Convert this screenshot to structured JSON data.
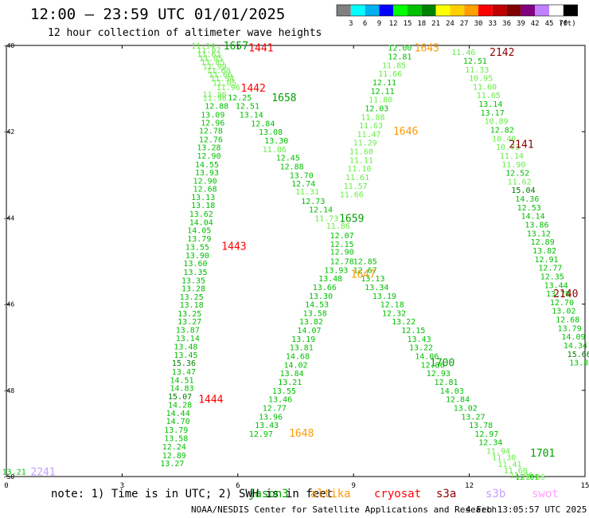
{
  "title": "12:00 – 23:59 UTC 01/01/2025",
  "subtitle": "12 hour collection of altimeter wave heights",
  "colorbar": {
    "unit": "(ft)",
    "labels": [
      "3",
      "6",
      "9",
      "12",
      "15",
      "18",
      "21",
      "24",
      "27",
      "30",
      "33",
      "36",
      "39",
      "42",
      "45",
      "70"
    ],
    "colors": [
      "#808080",
      "#00ffff",
      "#00b0f0",
      "#0000ff",
      "#00ff00",
      "#00c000",
      "#008000",
      "#ffff00",
      "#ffd000",
      "#ffa000",
      "#ff0000",
      "#c00000",
      "#800000",
      "#800080",
      "#c080ff",
      "#ffffff",
      "#000000"
    ]
  },
  "footer": {
    "note": "note:  1) Time is in UTC;  2) SWH is in feet",
    "credit": "NOAA/NESDIS Center for Satellite Applications and Research",
    "timestamp": "4 Feb 13:05:57 UTC 2025"
  },
  "legend": [
    {
      "name": "jason3",
      "color": "#00a000"
    },
    {
      "name": "altika",
      "color": "#ff9900"
    },
    {
      "name": "cryosat",
      "color": "#ff0000"
    },
    {
      "name": "s3a",
      "color": "#900000"
    },
    {
      "name": "s3b",
      "color": "#c8a0ff"
    },
    {
      "name": "swot",
      "color": "#ffa0ff"
    }
  ],
  "chart_data": {
    "type": "scatter",
    "xlim": [
      0,
      15
    ],
    "ylim": [
      -50,
      -40
    ],
    "xticks": [
      "0",
      "3",
      "6",
      "9",
      "12",
      "15"
    ],
    "yticks": [
      {
        "value": -40,
        "label": "-40"
      },
      {
        "value": -42,
        "label": "-42"
      },
      {
        "value": -44,
        "label": "-44"
      },
      {
        "value": -46,
        "label": "-46"
      },
      {
        "value": -48,
        "label": "-48"
      },
      {
        "value": -50,
        "label": "-50"
      }
    ],
    "color_scale": {
      "bounds": [
        3,
        6,
        9,
        12,
        15,
        18,
        21
      ],
      "colors": [
        "#00ffff",
        "#00b0f0",
        "#0000ff",
        "#66ee44",
        "#00c000",
        "#008000",
        "#ffff00"
      ]
    },
    "tracks": [
      {
        "satellite": "swot",
        "pass_labels": [
          {
            "text": "2241",
            "x": 0.95,
            "y": -49.88,
            "color": "#c8a0ff"
          }
        ],
        "points": [
          [
            0.2,
            -49.88,
            13.21
          ]
        ]
      },
      {
        "satellite": "cryosat",
        "pass_labels": [
          {
            "text": "1441",
            "x": 6.6,
            "y": -40.05,
            "color": "#ff0000"
          },
          {
            "text": "1442",
            "x": 6.4,
            "y": -40.98,
            "color": "#ff0000"
          },
          {
            "text": "1443",
            "x": 5.9,
            "y": -44.65,
            "color": "#ff0000"
          },
          {
            "text": "1444",
            "x": 5.3,
            "y": -48.2,
            "color": "#ff0000"
          }
        ],
        "points": [
          [
            5.1,
            -40.0,
            11.14
          ],
          [
            5.25,
            -40.1,
            11.07
          ],
          [
            5.25,
            -40.19,
            11.62
          ],
          [
            5.3,
            -40.29,
            11.05
          ],
          [
            5.35,
            -40.38,
            11.85
          ],
          [
            5.4,
            -40.48,
            11.99
          ],
          [
            5.5,
            -40.57,
            11.6
          ],
          [
            5.55,
            -40.67,
            11.66
          ],
          [
            5.6,
            -40.76,
            11.94
          ],
          [
            5.65,
            -40.86,
            11.05
          ],
          [
            5.75,
            -40.96,
            11.96
          ],
          [
            5.4,
            -41.13,
            11.96
          ],
          [
            5.4,
            -41.21,
            11.96
          ],
          [
            5.45,
            -41.4,
            12.88
          ],
          [
            5.35,
            -41.6,
            13.09
          ],
          [
            5.35,
            -41.78,
            12.96
          ],
          [
            5.3,
            -41.97,
            12.78
          ],
          [
            5.3,
            -42.17,
            12.76
          ],
          [
            5.25,
            -42.36,
            13.28
          ],
          [
            5.25,
            -42.55,
            12.9
          ],
          [
            5.2,
            -42.75,
            14.55
          ],
          [
            5.2,
            -42.94,
            13.93
          ],
          [
            5.15,
            -43.13,
            12.9
          ],
          [
            5.15,
            -43.32,
            12.68
          ],
          [
            5.1,
            -43.51,
            13.13
          ],
          [
            5.1,
            -43.7,
            13.18
          ],
          [
            5.05,
            -43.9,
            13.62
          ],
          [
            5.05,
            -44.09,
            14.04
          ],
          [
            5.0,
            -44.28,
            14.05
          ],
          [
            5.0,
            -44.47,
            13.79
          ],
          [
            4.95,
            -44.67,
            13.55
          ],
          [
            4.95,
            -44.86,
            13.9
          ],
          [
            4.9,
            -45.05,
            13.6
          ],
          [
            4.9,
            -45.25,
            13.35
          ],
          [
            4.85,
            -45.44,
            13.35
          ],
          [
            4.85,
            -45.63,
            13.28
          ],
          [
            4.8,
            -45.82,
            13.25
          ],
          [
            4.8,
            -46.01,
            13.18
          ],
          [
            4.75,
            -46.21,
            13.25
          ],
          [
            4.75,
            -46.4,
            13.27
          ],
          [
            4.7,
            -46.59,
            13.87
          ],
          [
            4.7,
            -46.78,
            13.14
          ],
          [
            4.65,
            -46.98,
            13.48
          ],
          [
            4.65,
            -47.17,
            13.45
          ],
          [
            4.6,
            -47.36,
            15.36
          ],
          [
            4.6,
            -47.56,
            13.47
          ],
          [
            4.55,
            -47.75,
            14.51
          ],
          [
            4.55,
            -47.94,
            14.83
          ],
          [
            4.5,
            -48.13,
            15.07
          ],
          [
            4.5,
            -48.33,
            14.28
          ],
          [
            4.45,
            -48.52,
            14.44
          ],
          [
            4.45,
            -48.71,
            14.7
          ],
          [
            4.4,
            -48.91,
            13.79
          ],
          [
            4.4,
            -49.1,
            13.58
          ],
          [
            4.35,
            -49.3,
            12.24
          ],
          [
            4.35,
            -49.5,
            12.89
          ],
          [
            4.3,
            -49.69,
            13.27
          ]
        ]
      },
      {
        "satellite": "jason3",
        "pass_labels": [
          {
            "text": "1657",
            "x": 5.95,
            "y": -40.0,
            "color": "#00a000"
          },
          {
            "text": "1658",
            "x": 7.2,
            "y": -41.2,
            "color": "#00a000"
          },
          {
            "text": "1659",
            "x": 8.95,
            "y": -44.0,
            "color": "#00a000"
          },
          {
            "text": "1700",
            "x": 11.3,
            "y": -47.35,
            "color": "#00a000"
          },
          {
            "text": "1701",
            "x": 13.9,
            "y": -49.45,
            "color": "#00a000"
          }
        ],
        "points": [
          [
            6.05,
            -41.2,
            12.25
          ],
          [
            6.25,
            -41.4,
            12.51
          ],
          [
            6.35,
            -41.6,
            13.14
          ],
          [
            6.65,
            -41.8,
            12.84
          ],
          [
            6.85,
            -42.0,
            13.08
          ],
          [
            7.0,
            -42.2,
            13.3
          ],
          [
            6.95,
            -42.4,
            11.86
          ],
          [
            7.3,
            -42.6,
            12.45
          ],
          [
            7.4,
            -42.8,
            12.88
          ],
          [
            7.65,
            -43.0,
            13.7
          ],
          [
            7.7,
            -43.2,
            12.74
          ],
          [
            7.8,
            -43.38,
            11.31
          ],
          [
            7.95,
            -43.6,
            12.73
          ],
          [
            8.15,
            -43.8,
            12.14
          ],
          [
            8.3,
            -44.0,
            11.73
          ],
          [
            8.6,
            -44.18,
            11.86
          ],
          [
            8.7,
            -44.4,
            12.07
          ],
          [
            8.7,
            -44.6,
            12.15
          ],
          [
            8.7,
            -44.78,
            12.9
          ],
          [
            8.7,
            -45.0,
            12.78
          ],
          [
            8.55,
            -45.2,
            13.93
          ],
          [
            8.4,
            -45.4,
            13.48
          ],
          [
            8.25,
            -45.6,
            13.66
          ],
          [
            8.15,
            -45.8,
            13.3
          ],
          [
            8.05,
            -46.0,
            14.53
          ],
          [
            8.0,
            -46.2,
            13.58
          ],
          [
            7.9,
            -46.4,
            13.82
          ],
          [
            7.85,
            -46.6,
            14.07
          ],
          [
            7.7,
            -46.8,
            13.19
          ],
          [
            7.65,
            -47.0,
            13.81
          ],
          [
            7.55,
            -47.2,
            14.68
          ],
          [
            7.5,
            -47.4,
            14.02
          ],
          [
            7.4,
            -47.6,
            13.84
          ],
          [
            7.35,
            -47.8,
            13.21
          ],
          [
            7.2,
            -48.0,
            13.55
          ],
          [
            7.1,
            -48.2,
            13.46
          ],
          [
            6.95,
            -48.4,
            12.77
          ],
          [
            6.85,
            -48.6,
            13.96
          ],
          [
            6.75,
            -48.8,
            13.43
          ],
          [
            6.6,
            -49.0,
            12.97
          ],
          [
            9.3,
            -45.0,
            12.85
          ],
          [
            9.3,
            -45.2,
            12.67
          ],
          [
            9.5,
            -45.4,
            13.13
          ],
          [
            9.6,
            -45.6,
            13.34
          ],
          [
            9.8,
            -45.8,
            13.19
          ],
          [
            10.0,
            -46.0,
            12.18
          ],
          [
            10.05,
            -46.2,
            12.32
          ],
          [
            10.3,
            -46.4,
            13.22
          ],
          [
            10.55,
            -46.6,
            12.15
          ],
          [
            10.7,
            -46.8,
            13.43
          ],
          [
            10.75,
            -47.0,
            13.22
          ],
          [
            10.9,
            -47.2,
            14.06
          ],
          [
            11.05,
            -47.4,
            12.86
          ],
          [
            11.2,
            -47.6,
            12.93
          ],
          [
            11.4,
            -47.8,
            12.81
          ],
          [
            11.55,
            -48.0,
            14.03
          ],
          [
            11.7,
            -48.2,
            12.84
          ],
          [
            11.9,
            -48.4,
            13.02
          ],
          [
            12.1,
            -48.6,
            13.27
          ],
          [
            12.3,
            -48.8,
            13.78
          ],
          [
            12.45,
            -49.0,
            12.97
          ],
          [
            12.55,
            -49.2,
            12.34
          ]
        ]
      },
      {
        "satellite": "altika",
        "pass_labels": [
          {
            "text": "1645",
            "x": 10.9,
            "y": -40.05,
            "color": "#ff9900"
          },
          {
            "text": "1646",
            "x": 10.35,
            "y": -41.98,
            "color": "#ff9900"
          },
          {
            "text": "1647",
            "x": 9.25,
            "y": -45.3,
            "color": "#ff9900"
          },
          {
            "text": "1648",
            "x": 7.65,
            "y": -48.98,
            "color": "#ff9900"
          }
        ],
        "points": [
          [
            10.2,
            -40.05,
            12.0
          ],
          [
            10.2,
            -40.25,
            12.81
          ],
          [
            10.05,
            -40.45,
            11.85
          ],
          [
            9.95,
            -40.65,
            11.66
          ],
          [
            9.8,
            -40.85,
            12.11
          ],
          [
            9.75,
            -41.05,
            12.11
          ],
          [
            9.7,
            -41.25,
            11.8
          ],
          [
            9.6,
            -41.45,
            12.03
          ],
          [
            9.5,
            -41.65,
            11.88
          ],
          [
            9.45,
            -41.85,
            11.63
          ],
          [
            9.4,
            -42.05,
            11.47
          ],
          [
            9.3,
            -42.25,
            11.29
          ],
          [
            9.2,
            -42.45,
            11.6
          ],
          [
            9.2,
            -42.65,
            11.11
          ],
          [
            9.15,
            -42.85,
            11.1
          ],
          [
            9.1,
            -43.05,
            11.61
          ],
          [
            9.05,
            -43.25,
            11.57
          ],
          [
            8.95,
            -43.45,
            11.66
          ]
        ]
      },
      {
        "satellite": "s3a",
        "pass_labels": [
          {
            "text": "2142",
            "x": 12.85,
            "y": -40.15,
            "color": "#900000"
          },
          {
            "text": "2141",
            "x": 13.35,
            "y": -42.28,
            "color": "#900000"
          },
          {
            "text": "2140",
            "x": 14.5,
            "y": -45.75,
            "color": "#900000"
          }
        ],
        "points": [
          [
            11.85,
            -40.15,
            11.46
          ],
          [
            12.15,
            -40.35,
            12.51
          ],
          [
            12.2,
            -40.55,
            11.33
          ],
          [
            12.3,
            -40.75,
            10.95
          ],
          [
            12.4,
            -40.95,
            11.6
          ],
          [
            12.5,
            -41.15,
            11.65
          ],
          [
            12.55,
            -41.35,
            13.14
          ],
          [
            12.6,
            -41.55,
            13.17
          ],
          [
            12.7,
            -41.75,
            10.89
          ],
          [
            12.85,
            -41.95,
            12.82
          ],
          [
            12.9,
            -42.15,
            10.4
          ],
          [
            13.0,
            -42.35,
            10.73
          ],
          [
            13.1,
            -42.55,
            11.14
          ],
          [
            13.15,
            -42.75,
            11.9
          ],
          [
            13.25,
            -42.95,
            12.52
          ],
          [
            13.3,
            -43.15,
            11.62
          ],
          [
            13.4,
            -43.35,
            15.04
          ],
          [
            13.5,
            -43.55,
            14.36
          ],
          [
            13.55,
            -43.75,
            12.53
          ],
          [
            13.65,
            -43.95,
            14.14
          ],
          [
            13.75,
            -44.15,
            13.86
          ],
          [
            13.8,
            -44.35,
            13.12
          ],
          [
            13.9,
            -44.55,
            12.89
          ],
          [
            13.95,
            -44.75,
            13.82
          ],
          [
            14.0,
            -44.95,
            12.91
          ],
          [
            14.1,
            -45.15,
            12.77
          ],
          [
            14.15,
            -45.35,
            12.35
          ],
          [
            14.25,
            -45.55,
            13.44
          ],
          [
            14.3,
            -45.75,
            13.78
          ],
          [
            14.4,
            -45.95,
            12.7
          ],
          [
            14.45,
            -46.15,
            13.02
          ],
          [
            14.55,
            -46.35,
            12.68
          ],
          [
            14.6,
            -46.55,
            13.79
          ],
          [
            14.7,
            -46.75,
            14.09
          ],
          [
            14.75,
            -46.95,
            14.34
          ],
          [
            14.85,
            -47.15,
            15.66
          ],
          [
            14.9,
            -47.35,
            13.83
          ]
        ]
      },
      {
        "satellite": "jason3-tail",
        "pass_labels": [],
        "points": [
          [
            12.75,
            -49.4,
            11.94
          ],
          [
            12.9,
            -49.55,
            11.3
          ],
          [
            13.05,
            -49.7,
            11.41
          ],
          [
            13.2,
            -49.85,
            11.6
          ],
          [
            13.35,
            -49.95,
            11.46
          ],
          [
            13.5,
            -50.0,
            12.01
          ],
          [
            13.65,
            -50.0,
            11.86
          ]
        ]
      }
    ]
  }
}
